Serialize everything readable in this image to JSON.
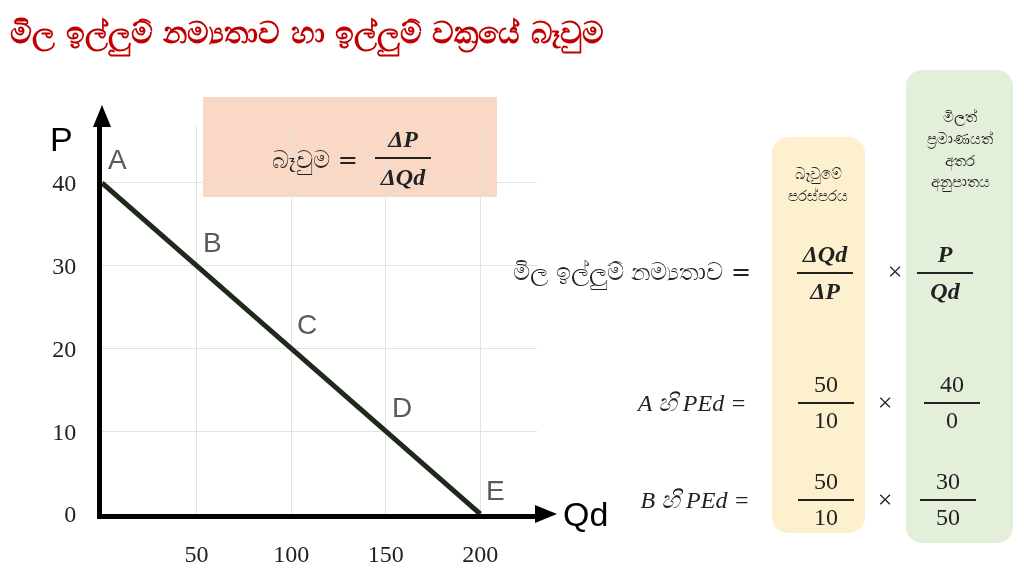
{
  "chart_data": {
    "type": "line",
    "title": "මිල ඉල්ලුම් නම්‍යතාව හා ඉල්ලුම් වක්‍රයේ බෑවුම",
    "xlabel": "Qd",
    "ylabel": "P",
    "x": [
      0,
      50,
      100,
      150,
      200
    ],
    "series": [
      {
        "color": "#1e2a1a",
        "values": [
          40,
          30,
          20,
          10,
          0
        ]
      }
    ],
    "xlim": [
      0,
      230
    ],
    "ylim": [
      0,
      47
    ],
    "xticks": [
      50,
      100,
      150,
      200
    ],
    "yticks": [
      0,
      10,
      20,
      30,
      40
    ],
    "grid": true,
    "annotations": [
      "බෑවුම =",
      "ΔP",
      "ΔQd",
      "බෑවුමේ\nපරස්පරය",
      "මිලත්\nප්‍රමාණයත්\nඅතර\nඅනුපාතය",
      "මිල ඉල්ලුම් නම්‍යතාව =",
      "ΔQd",
      "ΔP",
      "×",
      "P",
      "Qd",
      "A හි PEd =",
      "50",
      "10",
      "×",
      "40",
      "0",
      "B හි PEd =",
      "50",
      "10",
      "×",
      "30",
      "50",
      {
        "text": "A",
        "x": 0,
        "y": 40
      },
      {
        "text": "B",
        "x": 50,
        "y": 30
      },
      {
        "text": "C",
        "x": 100,
        "y": 20
      },
      {
        "text": "D",
        "x": 150,
        "y": 10
      },
      {
        "text": "E",
        "x": 200,
        "y": 0
      }
    ]
  }
}
